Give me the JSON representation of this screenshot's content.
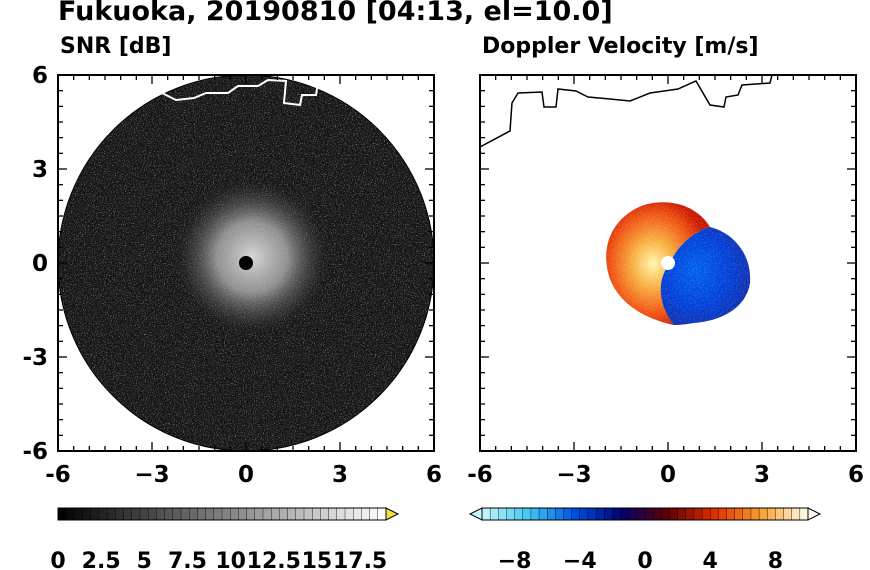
{
  "title": "Fukuoka, 20190810 [04:13, el=10.0]",
  "colors": {
    "background": "#ffffff",
    "frame": "#000000",
    "snr_field": "#151515",
    "coastline_on_snr": "#ffffff",
    "coastline_on_vel": "#000000",
    "radar_center_snr": "#000000",
    "radar_center_vel": "#ffffff"
  },
  "chart_data": [
    {
      "type": "heatmap",
      "panel": "left",
      "title": "SNR [dB]",
      "xlim": [
        -6,
        6
      ],
      "ylim": [
        -6,
        6
      ],
      "xticks": [
        "-6",
        "−3",
        "0",
        "3",
        "6"
      ],
      "yticks": [
        "6",
        "3",
        "0",
        "-3",
        "-6"
      ],
      "xtick_values": [
        -6,
        -3,
        0,
        3,
        6
      ],
      "ytick_values": [
        6,
        3,
        0,
        -3,
        -6
      ],
      "grid": false,
      "radar_range": 6,
      "coverage_center": [
        0,
        0
      ],
      "description_of_field": "bright return near radar, falling off with range",
      "colorbar": {
        "range": [
          0,
          19
        ],
        "ticks": [
          "0",
          "2.5",
          "5",
          "7.5",
          "10",
          "12.5",
          "15",
          "17.5"
        ],
        "tick_values": [
          0,
          2.5,
          5,
          7.5,
          10,
          12.5,
          15,
          17.5
        ],
        "extend": "max",
        "levels": 40,
        "colors": [
          "#000000",
          "#ffffff",
          "#f0e040"
        ]
      }
    },
    {
      "type": "heatmap",
      "panel": "right",
      "title": "Doppler Velocity [m/s]",
      "xlim": [
        -6,
        6
      ],
      "ylim": [
        -6,
        6
      ],
      "xticks": [
        "-6",
        "−3",
        "0",
        "3",
        "6"
      ],
      "yticks": [
        "6",
        "3",
        "0",
        "-3",
        "-6"
      ],
      "xtick_values": [
        -6,
        -3,
        0,
        3,
        6
      ],
      "ytick_values": [
        6,
        3,
        0,
        -3,
        -6
      ],
      "grid": false,
      "echo_region": "within about 2.5 km of the radar",
      "colorbar": {
        "range": [
          -10,
          10
        ],
        "ticks": [
          "−8",
          "−4",
          "0",
          "4",
          "8"
        ],
        "tick_values": [
          -8,
          -4,
          0,
          4,
          8
        ],
        "extend": "both",
        "levels": 40,
        "colors": [
          "#c8f8f8",
          "#40c8f0",
          "#0050e0",
          "#000070",
          "#600000",
          "#e03000",
          "#f8a030",
          "#fffff0"
        ]
      }
    }
  ]
}
